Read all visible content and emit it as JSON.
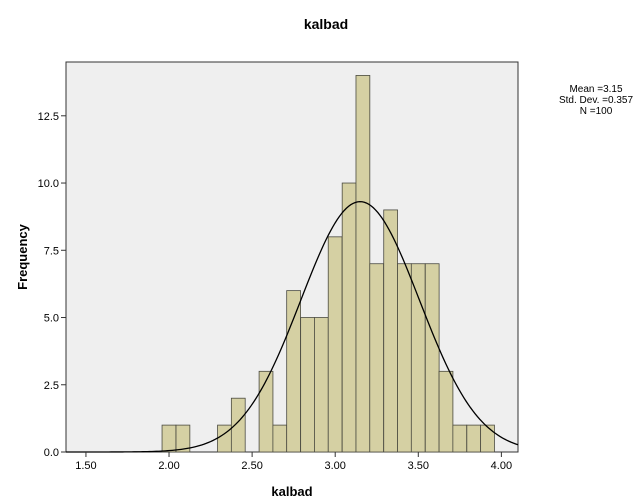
{
  "chart_data": {
    "type": "bar",
    "title": "kalbad",
    "xlabel": "kalbad",
    "ylabel": "Frequency",
    "xlim": [
      1.38,
      4.1
    ],
    "ylim": [
      0,
      14.5
    ],
    "x_ticks": [
      "1.50",
      "2.00",
      "2.50",
      "3.00",
      "3.50",
      "4.00"
    ],
    "y_ticks": [
      "0.0",
      "2.5",
      "5.0",
      "7.5",
      "10.0",
      "12.5"
    ],
    "bin_width": 0.0833,
    "bin_starts": [
      1.958,
      2.042,
      2.125,
      2.208,
      2.292,
      2.375,
      2.458,
      2.542,
      2.625,
      2.708,
      2.792,
      2.875,
      2.958,
      3.042,
      3.125,
      3.208,
      3.292,
      3.375,
      3.458,
      3.542,
      3.625,
      3.708,
      3.792,
      3.875
    ],
    "values": [
      1,
      1,
      0,
      0,
      1,
      2,
      0,
      3,
      1,
      6,
      5,
      5,
      8,
      10,
      14,
      7,
      9,
      7,
      7,
      7,
      3,
      1,
      1,
      1
    ],
    "normal_curve": {
      "mean": 3.15,
      "sd": 0.357,
      "n": 100
    },
    "stats": [
      "Mean =3.15",
      "Std. Dev. =0.357",
      "N =100"
    ],
    "grid": false,
    "legend": "top-right"
  },
  "colors": {
    "plot_bg": "#efefef",
    "bar_fill": "#d5d0a3",
    "bar_stroke": "#4a4a40",
    "curve": "#000000"
  }
}
